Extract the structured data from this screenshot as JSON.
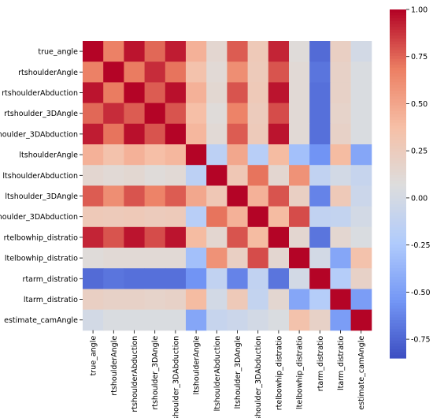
{
  "chart_data": {
    "type": "heatmap",
    "title": "",
    "xlabel": "",
    "ylabel": "",
    "labels": [
      "true_angle",
      "rtshoulderAngle",
      "rtshoulderAbduction",
      "rtshoulder_3DAngle",
      "rtshoulder_3DAbduction",
      "ltshoulderAngle",
      "ltshoulderAbduction",
      "ltshoulder_3DAngle",
      "ltshoulder_3DAbduction",
      "rtelbowhip_distratio",
      "ltelbowhip_distratio",
      "rtarm_distratio",
      "ltarm_distratio",
      "estimate_camAngle"
    ],
    "row_labels_display": [
      "true_angle",
      "rtshoulderAngle",
      "rtshoulderAbduction",
      "rtshoulder_3DAngle",
      "rtshoulder_3DAbduction",
      "ltshoulderAngle",
      "ltshoulderAbduction",
      "ltshoulder_3DAngle",
      "ltshoulder_3DAbduction",
      "rtelbowhip_distratio",
      "ltelbowhip_distratio",
      "rtarm_distratio",
      "ltarm_distratio",
      "estimate_camAngle"
    ],
    "col_labels_display": [
      "true_angle",
      "rtshoulderAngle",
      "rtshoulderAbduction",
      "rtshoulder_3DAngle",
      "rtshoulder_3DAbduction",
      "ltshoulderAngle",
      "ltshoulderAbduction",
      "ltshoulder_3DAngle",
      "ltshoulder_3DAbduction",
      "rtelbowhip_distratio",
      "ltelbowhip_distratio",
      "rtarm_distratio",
      "ltarm_distratio",
      "estimate_camAngle"
    ],
    "values": [
      [
        1.0,
        0.68,
        0.96,
        0.75,
        0.94,
        0.45,
        0.15,
        0.78,
        0.28,
        0.92,
        0.1,
        -0.72,
        0.22,
        0.0
      ],
      [
        0.68,
        1.0,
        0.7,
        0.9,
        0.72,
        0.35,
        0.12,
        0.62,
        0.27,
        0.8,
        0.12,
        -0.68,
        0.2,
        0.05
      ],
      [
        0.96,
        0.7,
        1.0,
        0.78,
        0.97,
        0.45,
        0.14,
        0.8,
        0.28,
        0.96,
        0.12,
        -0.7,
        0.2,
        0.05
      ],
      [
        0.75,
        0.9,
        0.78,
        1.0,
        0.8,
        0.38,
        0.1,
        0.67,
        0.26,
        0.82,
        0.12,
        -0.7,
        0.18,
        0.05
      ],
      [
        0.94,
        0.72,
        0.97,
        0.8,
        1.0,
        0.42,
        0.12,
        0.78,
        0.27,
        0.96,
        0.12,
        -0.7,
        0.2,
        0.05
      ],
      [
        0.45,
        0.35,
        0.45,
        0.38,
        0.42,
        1.0,
        -0.15,
        0.5,
        -0.18,
        0.4,
        -0.3,
        -0.55,
        0.4,
        -0.45
      ],
      [
        0.15,
        0.12,
        0.14,
        0.1,
        0.12,
        -0.15,
        1.0,
        0.3,
        0.72,
        0.15,
        0.6,
        -0.12,
        0.0,
        -0.08
      ],
      [
        0.78,
        0.62,
        0.8,
        0.67,
        0.78,
        0.5,
        0.3,
        1.0,
        0.45,
        0.8,
        0.22,
        -0.62,
        0.28,
        -0.05
      ],
      [
        0.28,
        0.27,
        0.28,
        0.26,
        0.27,
        -0.18,
        0.72,
        0.45,
        1.0,
        0.4,
        0.82,
        -0.12,
        -0.1,
        0.0
      ],
      [
        0.92,
        0.8,
        0.96,
        0.82,
        0.96,
        0.4,
        0.15,
        0.8,
        0.4,
        1.0,
        0.15,
        -0.68,
        0.15,
        0.05
      ],
      [
        0.1,
        0.12,
        0.12,
        0.12,
        0.12,
        -0.3,
        0.6,
        0.22,
        0.82,
        0.15,
        1.0,
        0.0,
        -0.45,
        0.35
      ],
      [
        -0.72,
        -0.68,
        -0.7,
        -0.7,
        -0.7,
        -0.55,
        -0.12,
        -0.62,
        -0.12,
        -0.68,
        0.0,
        1.0,
        -0.2,
        0.2
      ],
      [
        0.22,
        0.2,
        0.2,
        0.18,
        0.2,
        0.4,
        0.0,
        0.28,
        -0.1,
        0.15,
        -0.45,
        -0.2,
        1.0,
        -0.5
      ],
      [
        0.0,
        0.05,
        0.05,
        0.05,
        0.05,
        -0.45,
        -0.08,
        -0.05,
        0.0,
        0.05,
        0.35,
        0.2,
        -0.5,
        1.0
      ]
    ],
    "colormap": "coolwarm",
    "colormap_stops": [
      "#3b4cc0",
      "#7396f5",
      "#b0cbfc",
      "#dddddd",
      "#f6bfa6",
      "#ec7f63",
      "#b40426"
    ],
    "vmin": -0.85,
    "vmax": 1.0,
    "colorbar_ticks": [
      "1.00",
      "0.75",
      "0.50",
      "0.25",
      "0.00",
      "-0.25",
      "-0.50",
      "-0.75"
    ],
    "colorbar_tick_values": [
      1.0,
      0.75,
      0.5,
      0.25,
      0.0,
      -0.25,
      -0.5,
      -0.75
    ],
    "grid": false,
    "legend": "colorbar-right"
  }
}
